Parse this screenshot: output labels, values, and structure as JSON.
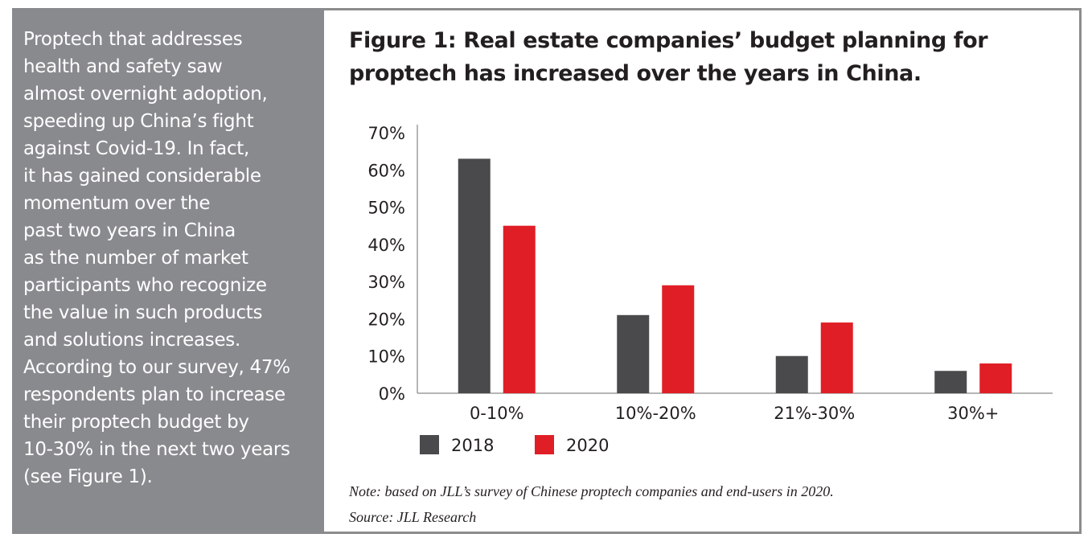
{
  "sidebar": {
    "text": "Proptech that addresses\nhealth and safety saw\nalmost overnight adoption,\nspeeding up China’s fight\nagainst Covid-19. In fact,\nit has gained considerable\nmomentum over the\npast two years in China\nas the number of market\nparticipants who recognize\nthe value in such products\nand solutions increases.\nAccording to our survey, 47%\nrespondents plan to increase\ntheir proptech budget by\n10-30% in the next two years\n(see Figure 1)."
  },
  "figure": {
    "note": "Note: based on JLL’s survey of Chinese proptech companies and end-users in 2020.",
    "source": "Source: JLL Research"
  },
  "colors": {
    "series_2018": "#4a4a4c",
    "series_2020": "#e01e26",
    "sidebar_bg": "#898a8e",
    "axis": "#9d9d9d"
  },
  "chart_data": {
    "type": "bar",
    "title": "Figure 1: Real estate companies’ budget planning for proptech has increased over the years in China.",
    "categories": [
      "0-10%",
      "10%-20%",
      "21%-30%",
      "30%+"
    ],
    "series": [
      {
        "name": "2018",
        "values": [
          63,
          21,
          10,
          6
        ]
      },
      {
        "name": "2020",
        "values": [
          45,
          29,
          19,
          8
        ]
      }
    ],
    "yticks": [
      "0%",
      "10%",
      "20%",
      "30%",
      "40%",
      "50%",
      "60%",
      "70%"
    ],
    "ylim": [
      0,
      70
    ],
    "xlabel": "",
    "ylabel": "",
    "legend": "bottom-left",
    "grid": false
  }
}
